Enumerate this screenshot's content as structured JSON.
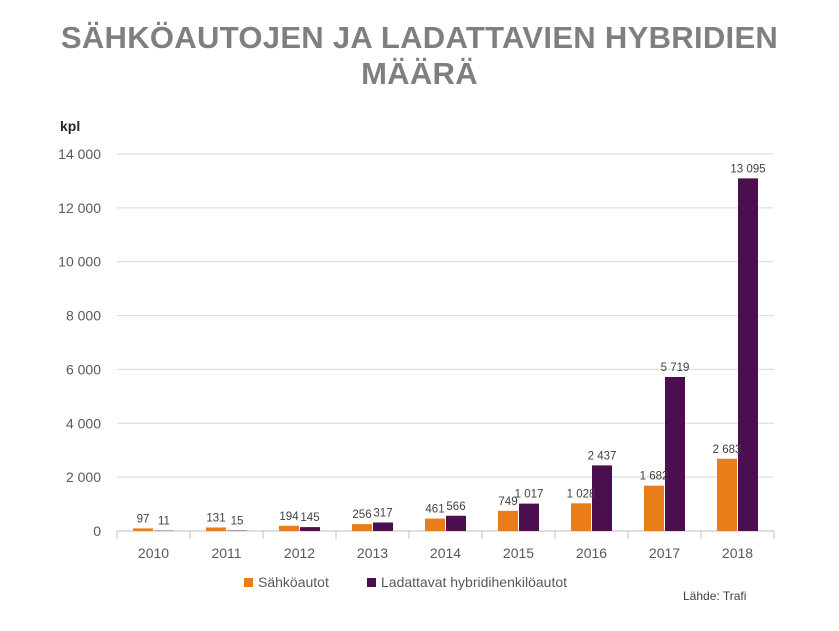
{
  "title": "SÄHKÖAUTOJEN JA LADATTAVIEN HYBRIDIEN MÄÄRÄ",
  "source": "Lähde: Trafi",
  "colors": {
    "series_1": "#e87d1a",
    "series_2": "#4b0f4f",
    "grid": "#d9d9d9",
    "axis": "#bfbfbf",
    "text": "#595959"
  },
  "chart_data": {
    "type": "bar",
    "title": "SÄHKÖAUTOJEN JA LADATTAVIEN HYBRIDIEN MÄÄRÄ",
    "xlabel": "",
    "ylabel": "kpl",
    "ylim": [
      0,
      14000
    ],
    "yticks": [
      0,
      2000,
      4000,
      6000,
      8000,
      10000,
      12000,
      14000
    ],
    "ytick_labels": [
      "0",
      "2 000",
      "4 000",
      "6 000",
      "8 000",
      "10 000",
      "12 000",
      "14 000"
    ],
    "grid": true,
    "legend_position": "bottom",
    "categories": [
      "2010",
      "2011",
      "2012",
      "2013",
      "2014",
      "2015",
      "2016",
      "2017",
      "2018"
    ],
    "series": [
      {
        "name": "Sähköautot",
        "color": "#e87d1a",
        "values": [
          97,
          131,
          194,
          256,
          461,
          749,
          1028,
          1682,
          2683
        ],
        "labels": [
          "97",
          "131",
          "194",
          "256",
          "461",
          "749",
          "1 028",
          "1 682",
          "2 683"
        ]
      },
      {
        "name": "Ladattavat hybridihenkilöautot",
        "color": "#4b0f4f",
        "values": [
          11,
          15,
          145,
          317,
          566,
          1017,
          2437,
          5719,
          13095
        ],
        "labels": [
          "11",
          "15",
          "145",
          "317",
          "566",
          "1 017",
          "2 437",
          "5 719",
          "13 095"
        ]
      }
    ]
  }
}
